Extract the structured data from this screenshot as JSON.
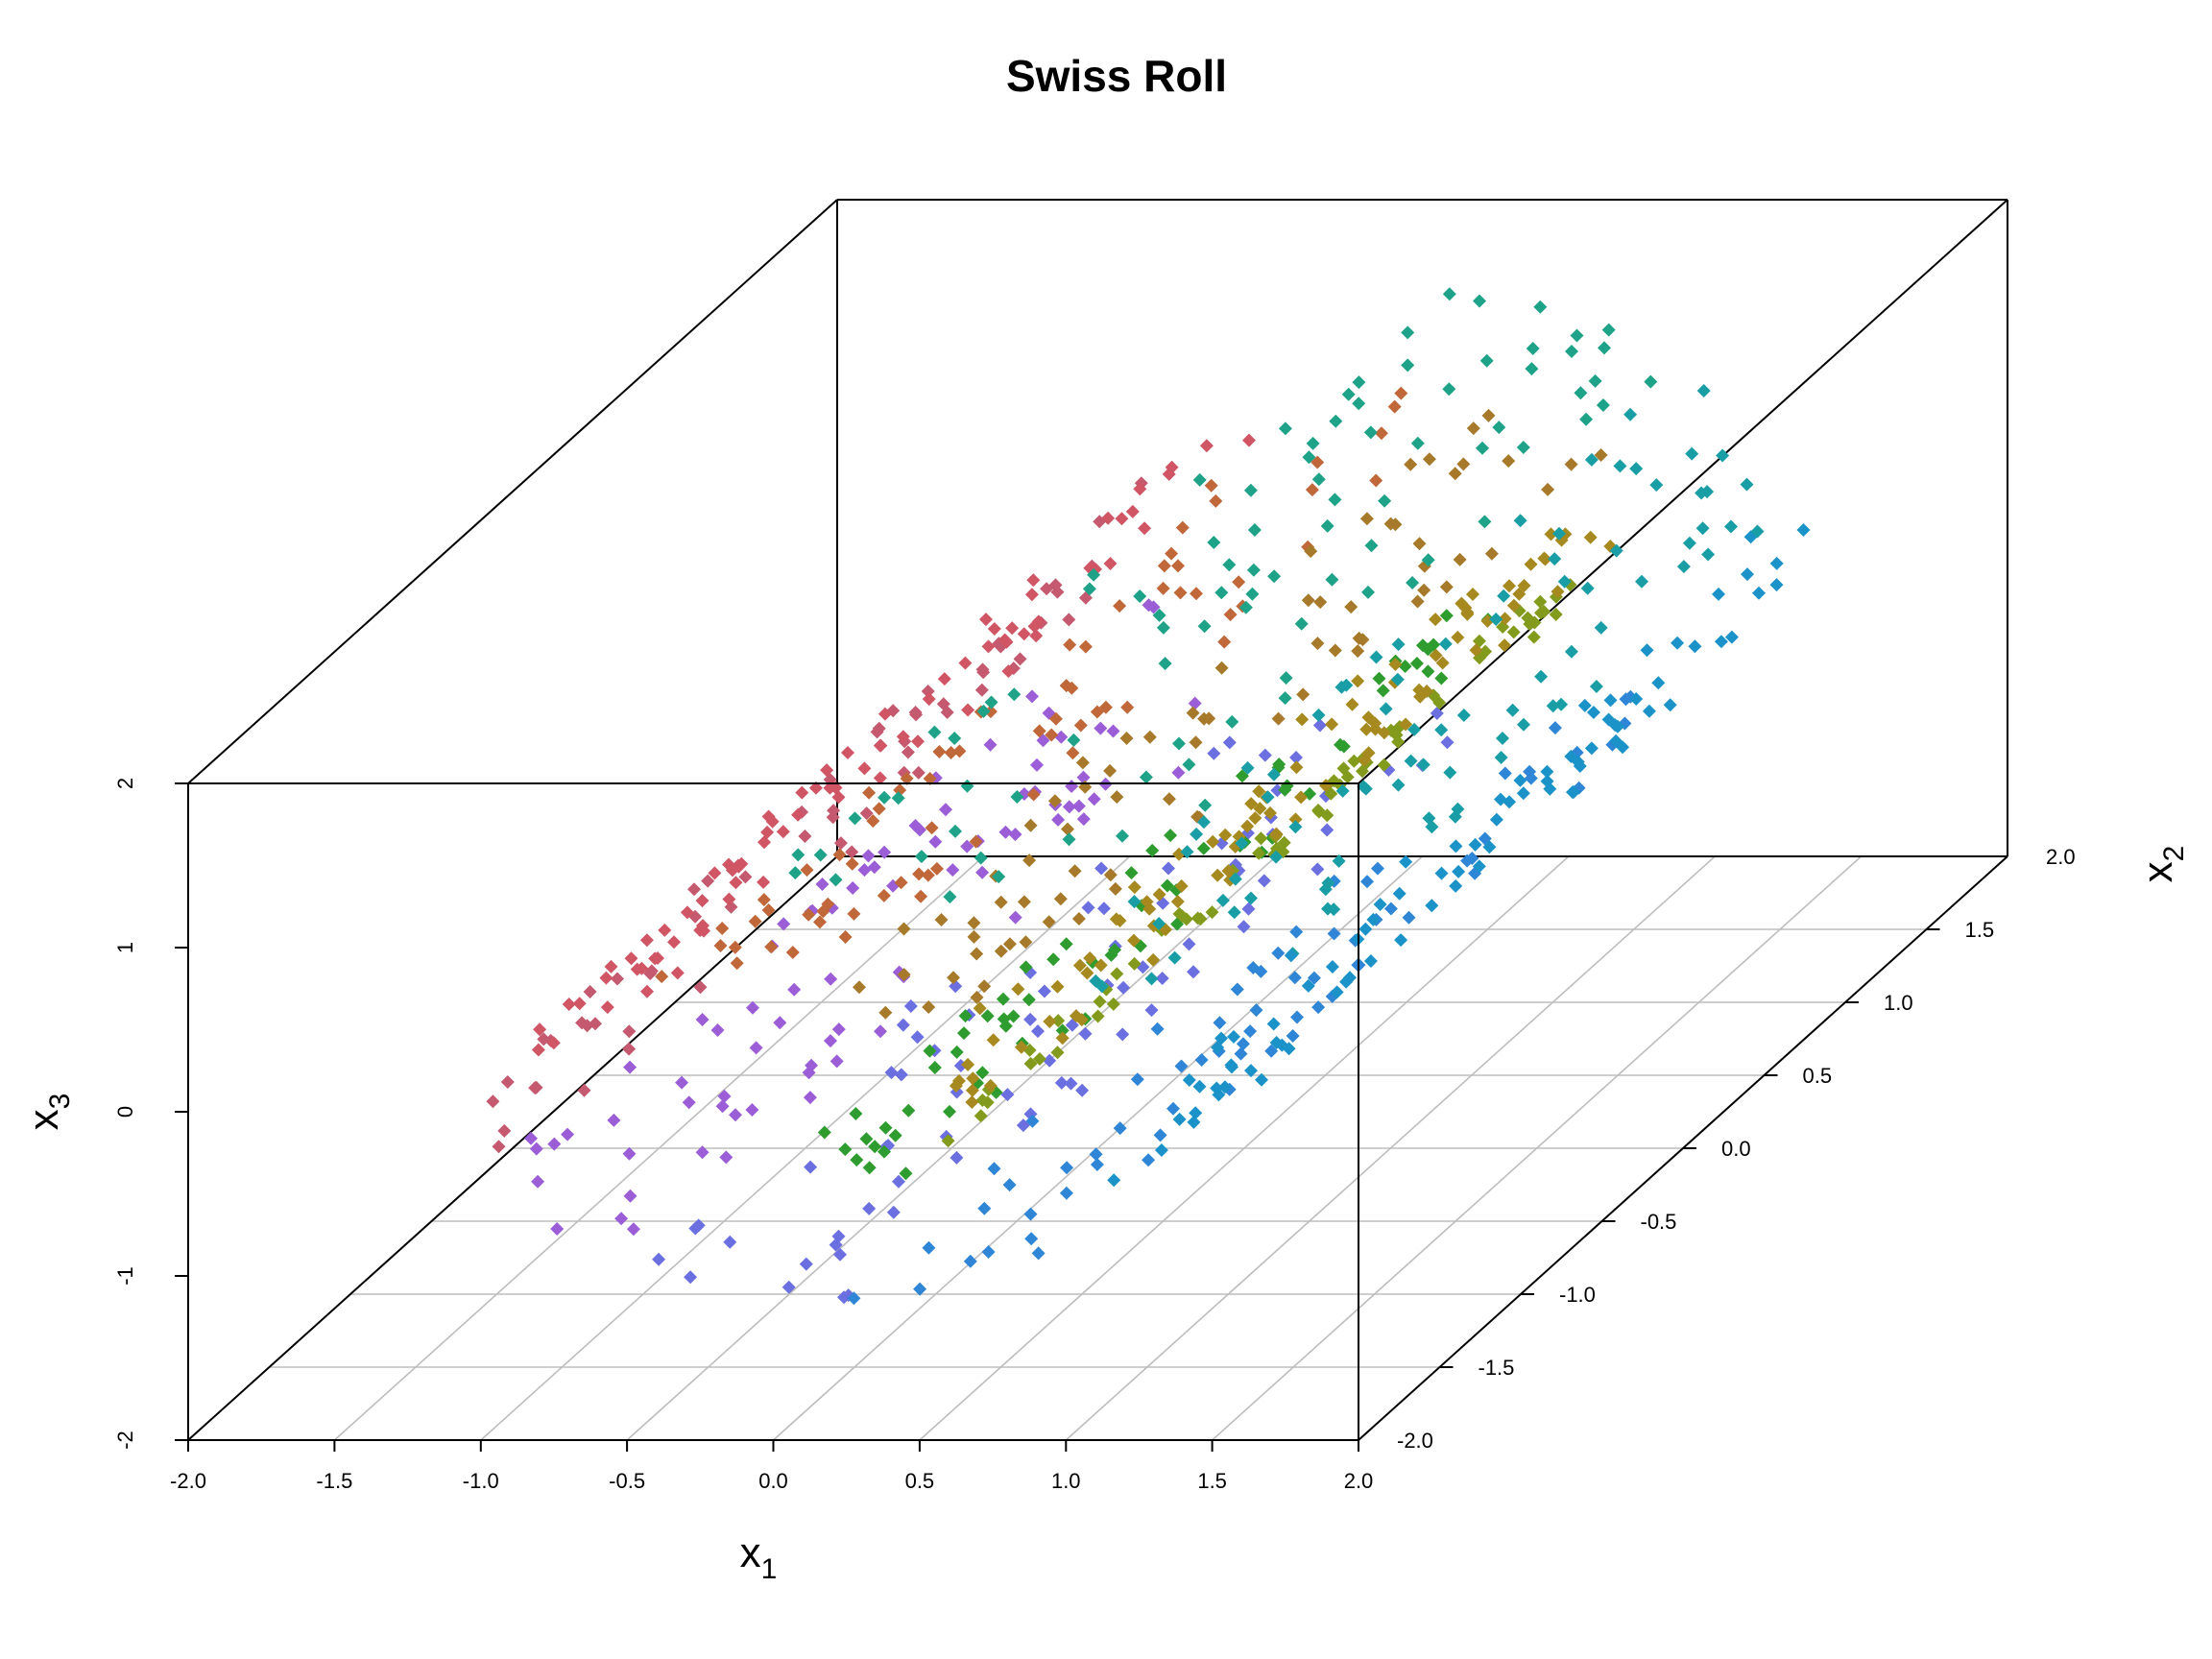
{
  "chart": {
    "title": "Swiss Roll",
    "x1_label": "x",
    "x1_sub": "1",
    "x2_label": "x",
    "x2_sub": "2",
    "x3_label": "x",
    "x3_sub": "3"
  },
  "chart_data": {
    "type": "scatter",
    "title": "Swiss Roll",
    "xlabel": "x1",
    "ylabel": "x2",
    "zlabel": "x3",
    "xlim": [
      -2.0,
      2.0
    ],
    "ylim": [
      -2.0,
      2.0
    ],
    "zlim": [
      -2,
      2
    ],
    "x_ticks": [
      "-2.0",
      "-1.5",
      "-1.0",
      "-0.5",
      "0.0",
      "0.5",
      "1.0",
      "1.5",
      "2.0"
    ],
    "y_ticks": [
      "-2.0",
      "-1.5",
      "-1.0",
      "-0.5",
      "0.0",
      "0.5",
      "1.0",
      "1.5",
      "2.0"
    ],
    "z_ticks": [
      "-2",
      "-1",
      "0",
      "1",
      "2"
    ],
    "grid": "floor",
    "projection": "3d-oblique",
    "color_by": "roll angle t",
    "palette": [
      "#2e9c2e",
      "#839b1c",
      "#a6891f",
      "#a67a2a",
      "#c0683a",
      "#d05565",
      "#c4596f",
      "#9b5ed6",
      "#6b6fe0",
      "#2f86d6",
      "#1b93c9",
      "#1a9ea6",
      "#1ea388"
    ],
    "points_description": "approx. 1000 points sampled on a swiss-roll surface: x1 = t/(5*pi)*cos(t)*2, x3 = t/(5*pi)*sin(t)*2, t in [1.5*pi, 4.5*pi], x2 uniform in [-2, 2]",
    "sample_points": [
      {
        "x1": -1.6,
        "x2": 0.2,
        "x3": 0.4
      },
      {
        "x1": -0.2,
        "x2": 1.6,
        "x3": 1.6
      },
      {
        "x1": 0.3,
        "x2": 0.5,
        "x3": 0.3
      },
      {
        "x1": 1.5,
        "x2": -0.3,
        "x3": -0.2
      },
      {
        "x1": 0.8,
        "x2": -1.8,
        "x3": -0.9
      }
    ]
  }
}
